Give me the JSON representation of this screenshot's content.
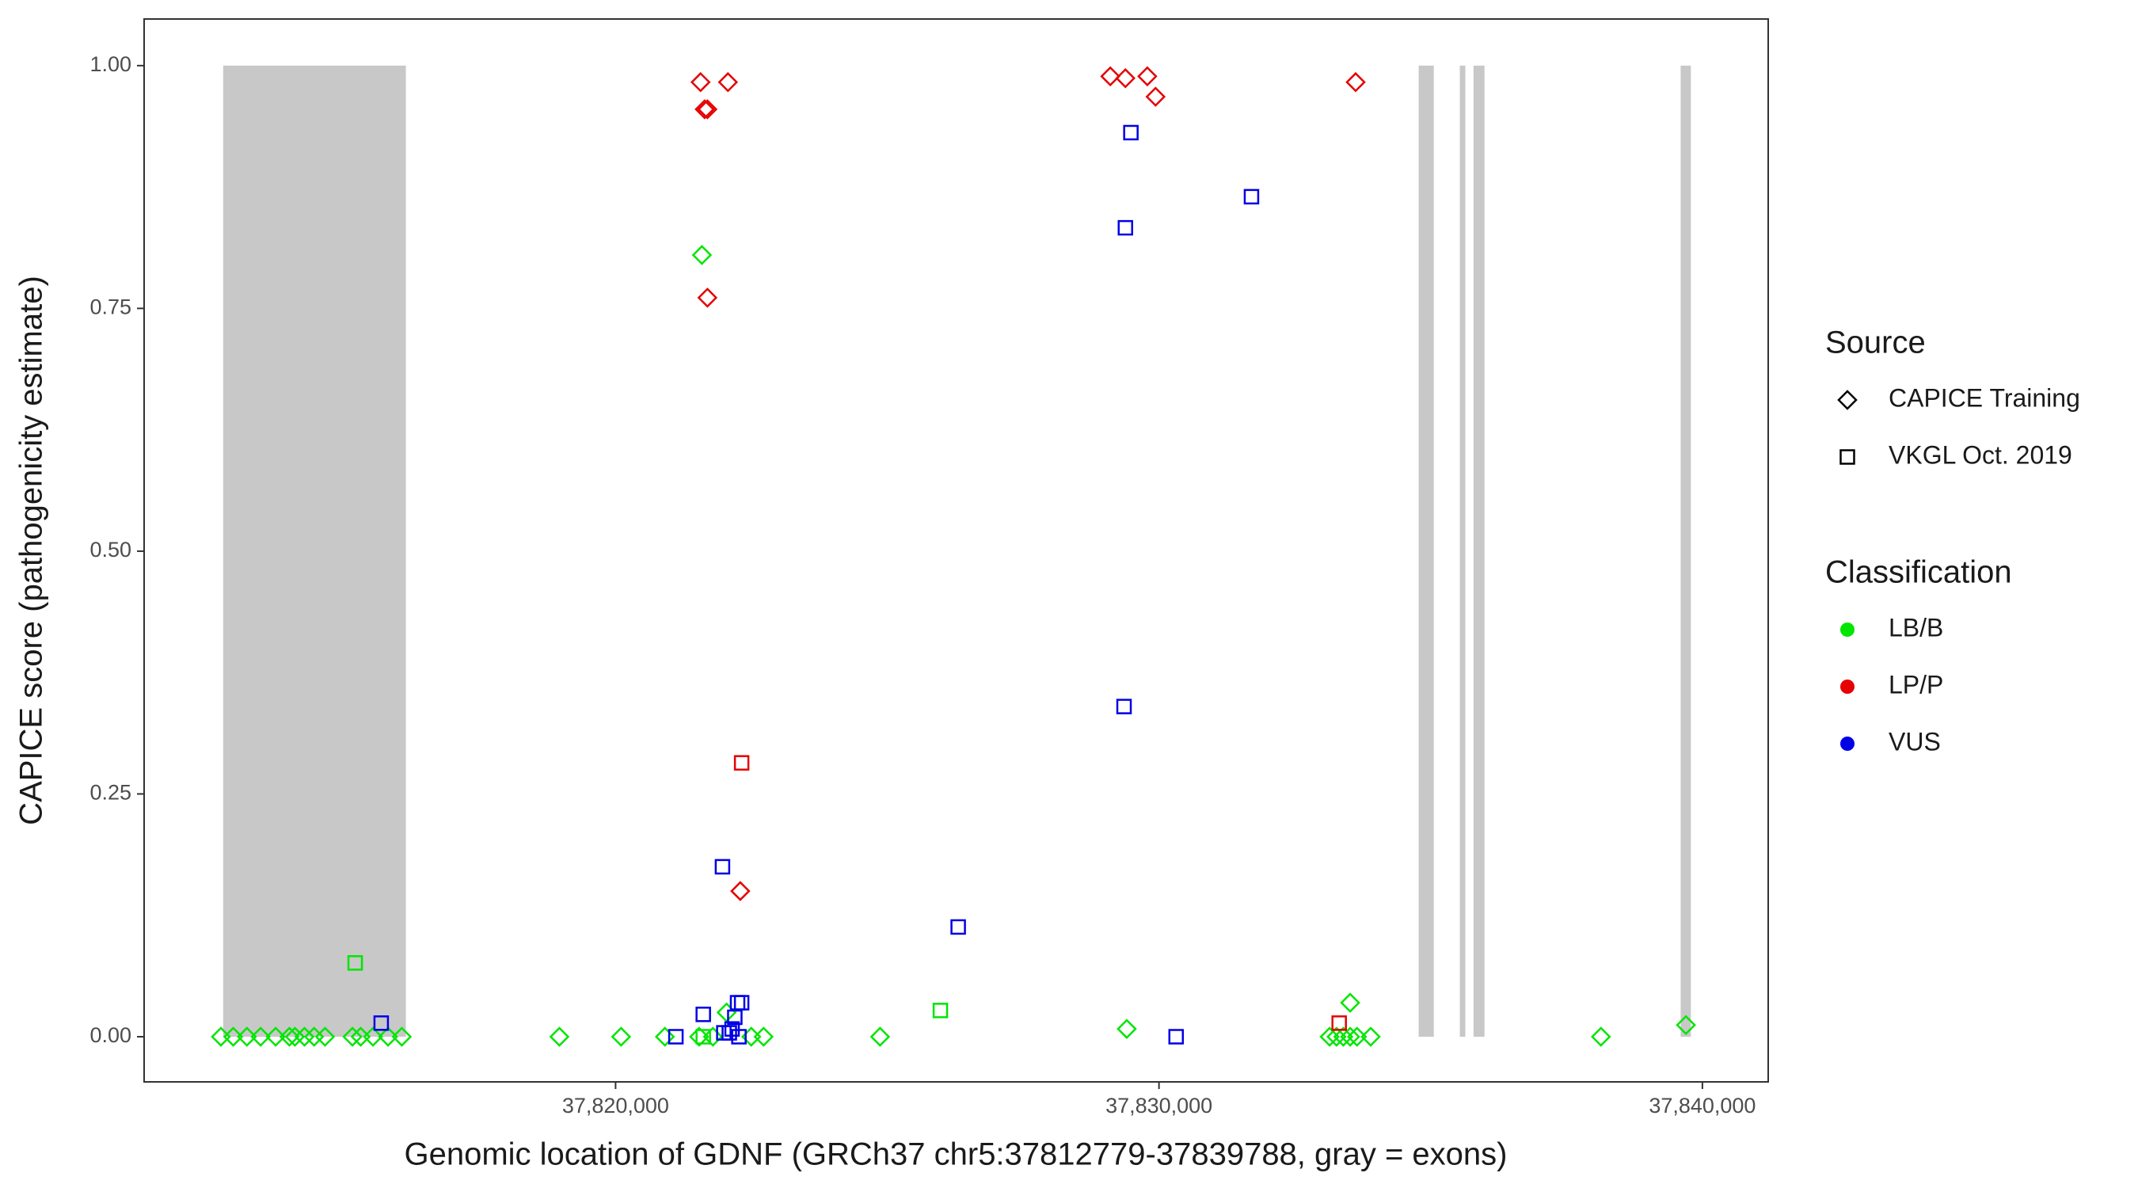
{
  "chart_data": {
    "type": "scatter",
    "x_label": "Genomic location of GDNF (GRCh37 chr5:37812779-37839788, gray = exons)",
    "y_label": "CAPICE score (pathogenicity estimate)",
    "xlim": [
      37811324,
      37841211
    ],
    "ylim": [
      -0.0465,
      1.048
    ],
    "xticks": [
      {
        "value": 37820000,
        "label": "37,820,000"
      },
      {
        "value": 37830000,
        "label": "37,830,000"
      },
      {
        "value": 37840000,
        "label": "37,840,000"
      }
    ],
    "yticks": [
      {
        "value": 0,
        "label": "0.00"
      },
      {
        "value": 0.25,
        "label": "0.25"
      },
      {
        "value": 0.5,
        "label": "0.50"
      },
      {
        "value": 0.75,
        "label": "0.75"
      },
      {
        "value": 1,
        "label": "1.00"
      }
    ],
    "exon_color": "#c8c8c8",
    "exons": [
      [
        37812779,
        37816141
      ],
      [
        37834779,
        37835057
      ],
      [
        37835536,
        37835637
      ],
      [
        37835788,
        37835990
      ],
      [
        37839600,
        37839788
      ]
    ],
    "source": {
      "title": "Source",
      "items": [
        {
          "label": "CAPICE Training",
          "shape": "diamond"
        },
        {
          "label": "VKGL Oct. 2019",
          "shape": "square"
        }
      ]
    },
    "classification": {
      "title": "Classification",
      "items": [
        {
          "label": "LB/B",
          "color": "#00e600"
        },
        {
          "label": "LP/P",
          "color": "#e60000"
        },
        {
          "label": "VUS",
          "color": "#0000e6"
        }
      ]
    },
    "series": [
      {
        "source": 0,
        "classification": 0,
        "x": [
          37812737,
          37812964,
          37813216,
          37813468,
          37813745,
          37813998,
          37814099,
          37814275,
          37814452,
          37814653,
          37815158,
          37815309,
          37815536,
          37815813,
          37816066,
          37818966,
          37820101,
          37820908,
          37821538,
          37821791,
          37822043,
          37822497,
          37822724,
          37824867,
          37829407,
          37833140,
          37833266,
          37833392,
          37833518,
          37833644,
          37833896,
          37833518,
          37838133,
          37839697,
          37821589
        ],
        "values": [
          0,
          0,
          0,
          0,
          0,
          0,
          0,
          0,
          0,
          0,
          0,
          0,
          0,
          0,
          0,
          0,
          0,
          0,
          0,
          0,
          0.025,
          0,
          0,
          0,
          0.008,
          0,
          0,
          0,
          0,
          0,
          0,
          0.035,
          0,
          0.012,
          0.805
        ]
      },
      {
        "source": 1,
        "classification": 0,
        "x": [
          37815208,
          37825977,
          37821614
        ],
        "values": [
          0.076,
          0.027,
          0
        ]
      },
      {
        "source": 0,
        "classification": 1,
        "x": [
          37821564,
          37822068,
          37821639,
          37821690,
          37821690,
          37822295,
          37829104,
          37829382,
          37829785,
          37829937,
          37833619
        ],
        "values": [
          0.983,
          0.983,
          0.955,
          0.955,
          0.761,
          0.15,
          0.989,
          0.987,
          0.989,
          0.968,
          0.983
        ]
      },
      {
        "source": 1,
        "classification": 1,
        "x": [
          37822320,
          37833316
        ],
        "values": [
          0.282,
          0.014
        ]
      },
      {
        "source": 1,
        "classification": 2,
        "x": [
          37815687,
          37821110,
          37821614,
          37821967,
          37821992,
          37822093,
          37822194,
          37822245,
          37822320,
          37822270,
          37822144,
          37826305,
          37829483,
          37829382,
          37829357,
          37830315,
          37831702
        ],
        "values": [
          0.014,
          0,
          0.023,
          0.175,
          0.004,
          0.004,
          0.02,
          0.035,
          0.035,
          0,
          0.008,
          0.113,
          0.931,
          0.833,
          0.34,
          0,
          0.865
        ]
      }
    ]
  }
}
